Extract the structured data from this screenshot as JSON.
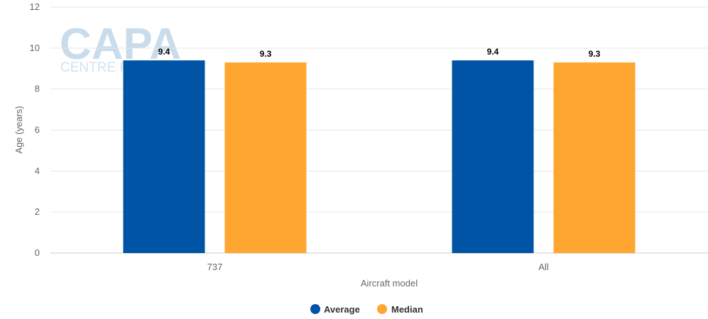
{
  "watermark": {
    "brand": "CAPA",
    "tagline": "CENTRE FO"
  },
  "chart_data": {
    "type": "bar",
    "categories": [
      "737",
      "All"
    ],
    "series": [
      {
        "name": "Average",
        "values": [
          9.4,
          9.4
        ],
        "color": "#0054a6"
      },
      {
        "name": "Median",
        "values": [
          9.3,
          9.3
        ],
        "color": "#ffa630"
      }
    ],
    "xlabel": "Aircraft model",
    "ylabel": "Age (years)",
    "ylim": [
      0,
      12
    ],
    "yticks": [
      0,
      2,
      4,
      6,
      8,
      10,
      12
    ],
    "grid": true,
    "legend_position": "bottom-center"
  }
}
